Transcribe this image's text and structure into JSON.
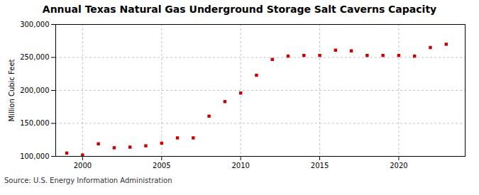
{
  "chart_data": {
    "type": "scatter",
    "title": "Annual Texas Natural Gas Underground Storage Salt Caverns Capacity",
    "ylabel": "Million Cubic Feet",
    "source": "Source: U.S. Energy Information Administration",
    "x": [
      1999,
      2000,
      2001,
      2002,
      2003,
      2004,
      2005,
      2006,
      2007,
      2008,
      2009,
      2010,
      2011,
      2012,
      2013,
      2014,
      2015,
      2016,
      2017,
      2018,
      2019,
      2020,
      2021,
      2022,
      2023
    ],
    "values": [
      105000,
      102000,
      119000,
      113000,
      114000,
      116000,
      120000,
      128000,
      128000,
      161000,
      183000,
      196000,
      223000,
      247000,
      252000,
      253000,
      253000,
      261000,
      260000,
      253000,
      253000,
      253000,
      252000,
      265000,
      270000
    ],
    "color": "#cc0000",
    "marker": "square",
    "xlim": [
      1998.3,
      2024.2
    ],
    "xticks": [
      2000,
      2005,
      2010,
      2015,
      2020
    ],
    "ylim": [
      100000,
      300000
    ],
    "yticks": [
      {
        "value": 100000,
        "label": "100,000"
      },
      {
        "value": 150000,
        "label": "150,000"
      },
      {
        "value": 200000,
        "label": "200,000"
      },
      {
        "value": 250000,
        "label": "250,000"
      },
      {
        "value": 300000,
        "label": "300,000"
      }
    ],
    "grid": true
  }
}
